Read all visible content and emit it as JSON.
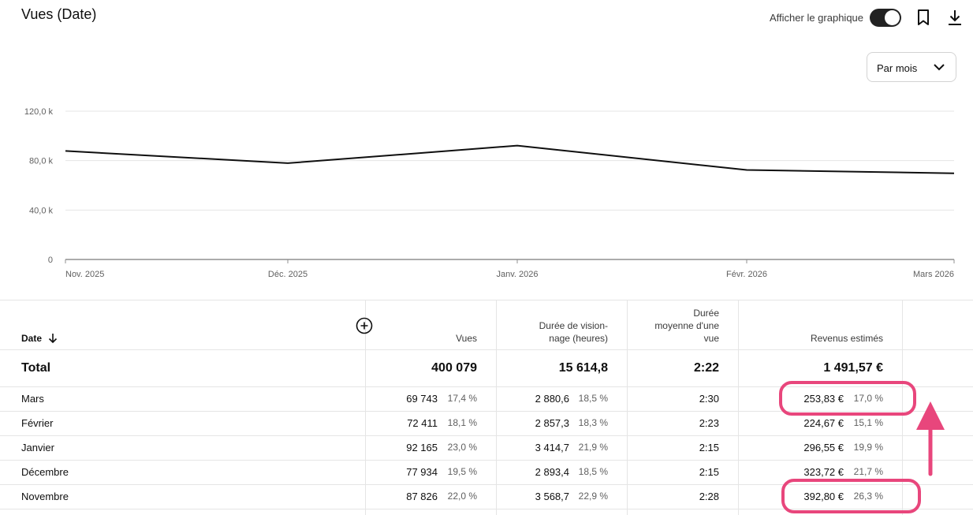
{
  "header": {
    "title": "Vues (Date)",
    "toggle_label": "Afficher le graphique",
    "period_select": "Par mois"
  },
  "chart_data": {
    "type": "line",
    "categories": [
      "Nov. 2025",
      "Déc. 2025",
      "Janv. 2026",
      "Févr. 2026",
      "Mars 2026"
    ],
    "series": [
      {
        "values": [
          87826,
          77934,
          92165,
          72411,
          69743
        ]
      }
    ],
    "y_ticks": [
      "0",
      "40,0 k",
      "80,0 k",
      "120,0 k"
    ],
    "ylim": [
      0,
      120000
    ],
    "grid": true
  },
  "table": {
    "headers": {
      "date": "Date",
      "views": "Vues",
      "watch_line1": "Durée de vision-",
      "watch_line2": "nage (heures)",
      "avg_line1": "Durée",
      "avg_line2": "moyenne d'une",
      "avg_line3": "vue",
      "revenue": "Revenus estimés"
    },
    "total": {
      "label": "Total",
      "views": "400 079",
      "watch": "15 614,8",
      "avg": "2:22",
      "revenue": "1 491,57 €"
    },
    "rows": [
      {
        "date": "Mars",
        "views": "69 743",
        "views_pct": "17,4 %",
        "watch": "2 880,6",
        "watch_pct": "18,5 %",
        "avg": "2:30",
        "revenue": "253,83 €",
        "revenue_pct": "17,0 %"
      },
      {
        "date": "Février",
        "views": "72 411",
        "views_pct": "18,1 %",
        "watch": "2 857,3",
        "watch_pct": "18,3 %",
        "avg": "2:23",
        "revenue": "224,67 €",
        "revenue_pct": "15,1 %"
      },
      {
        "date": "Janvier",
        "views": "92 165",
        "views_pct": "23,0 %",
        "watch": "3 414,7",
        "watch_pct": "21,9 %",
        "avg": "2:15",
        "revenue": "296,55 €",
        "revenue_pct": "19,9 %"
      },
      {
        "date": "Décembre",
        "views": "77 934",
        "views_pct": "19,5 %",
        "watch": "2 893,4",
        "watch_pct": "18,5 %",
        "avg": "2:15",
        "revenue": "323,72 €",
        "revenue_pct": "21,7 %"
      },
      {
        "date": "Novembre",
        "views": "87 826",
        "views_pct": "22,0 %",
        "watch": "3 568,7",
        "watch_pct": "22,9 %",
        "avg": "2:28",
        "revenue": "392,80 €",
        "revenue_pct": "26,3 %"
      }
    ]
  },
  "colors": {
    "highlight": "#e8467c",
    "line": "#0f0f0f",
    "toggle": "#222222"
  },
  "icons": [
    "bookmark-icon",
    "download-icon",
    "chevron-down-icon",
    "add-circle-icon",
    "arrow-down-icon",
    "arrow-up-annotation-icon"
  ]
}
